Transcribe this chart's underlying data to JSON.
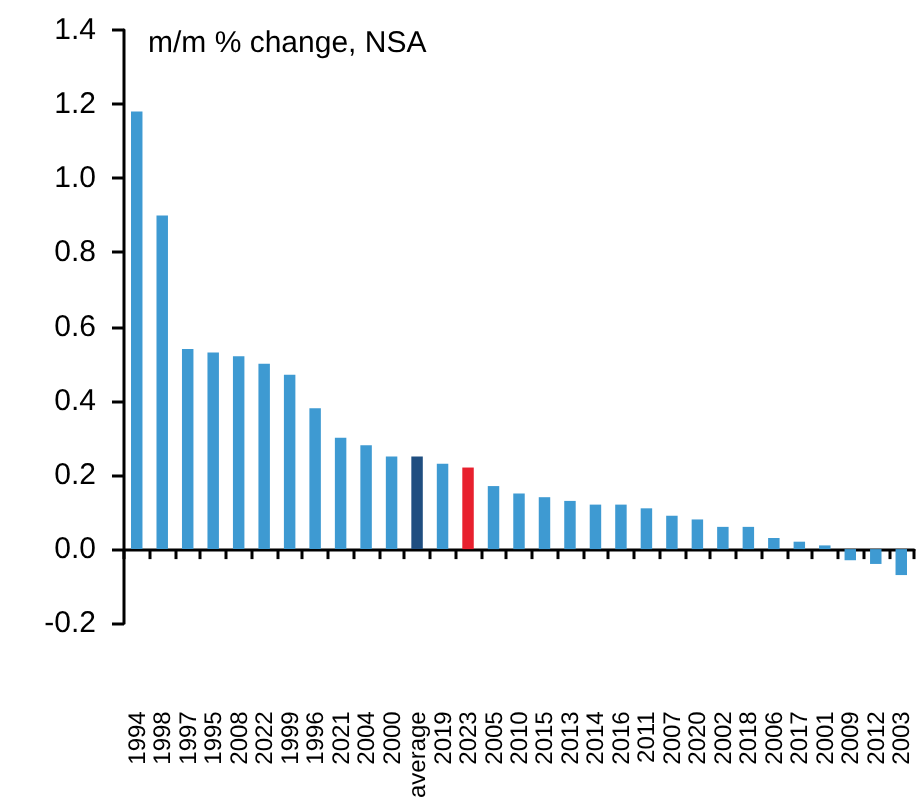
{
  "chart_data": {
    "type": "bar",
    "ylabel": "m/m % change, NSA",
    "categories": [
      "1994",
      "1998",
      "1997",
      "1995",
      "2008",
      "2022",
      "1999",
      "1996",
      "2021",
      "2004",
      "2000",
      "average",
      "2019",
      "2023",
      "2005",
      "2010",
      "2015",
      "2013",
      "2014",
      "2016",
      "2011",
      "2007",
      "2020",
      "2002",
      "2018",
      "2006",
      "2017",
      "2001",
      "2009",
      "2012",
      "2003"
    ],
    "values": [
      1.18,
      0.9,
      0.54,
      0.53,
      0.52,
      0.5,
      0.47,
      0.38,
      0.3,
      0.28,
      0.25,
      0.25,
      0.23,
      0.22,
      0.17,
      0.15,
      0.14,
      0.13,
      0.12,
      0.12,
      0.11,
      0.09,
      0.08,
      0.06,
      0.06,
      0.03,
      0.02,
      0.01,
      -0.03,
      -0.04,
      -0.07
    ],
    "colors": [
      "#3e9ad2",
      "#3e9ad2",
      "#3e9ad2",
      "#3e9ad2",
      "#3e9ad2",
      "#3e9ad2",
      "#3e9ad2",
      "#3e9ad2",
      "#3e9ad2",
      "#3e9ad2",
      "#3e9ad2",
      "#1f4e80",
      "#3e9ad2",
      "#e8202e",
      "#3e9ad2",
      "#3e9ad2",
      "#3e9ad2",
      "#3e9ad2",
      "#3e9ad2",
      "#3e9ad2",
      "#3e9ad2",
      "#3e9ad2",
      "#3e9ad2",
      "#3e9ad2",
      "#3e9ad2",
      "#3e9ad2",
      "#3e9ad2",
      "#3e9ad2",
      "#3e9ad2",
      "#3e9ad2",
      "#3e9ad2"
    ],
    "ylim": [
      -0.2,
      1.4
    ],
    "yticks": [
      -0.2,
      {
        "value": 0,
        "label": "0.0"
      },
      0.2,
      0.4,
      0.6,
      0.8,
      {
        "value": 1,
        "label": "1.0"
      },
      1.2,
      1.4
    ]
  }
}
